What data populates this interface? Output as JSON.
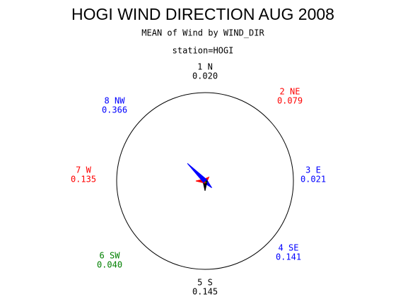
{
  "chart_data": {
    "type": "star",
    "title": "HOGI WIND DIRECTION AUG 2008",
    "subtitle": "MEAN of Wind by WIND_DIR",
    "annotation": "station=HOGI",
    "categories": [
      "1 N",
      "2 NE",
      "3 E",
      "4 SE",
      "5 S",
      "6 SW",
      "7 W",
      "8 NW"
    ],
    "values": [
      0.02,
      0.079,
      0.021,
      0.141,
      0.145,
      0.04,
      0.135,
      0.366
    ],
    "value_labels": [
      "0.020",
      "0.079",
      "0.021",
      "0.141",
      "0.145",
      "0.040",
      "0.135",
      "0.366"
    ],
    "colors": [
      "#000000",
      "#ff0000",
      "#0000ff",
      "#0000ff",
      "#000000",
      "#008000",
      "#ff0000",
      "#0000ff"
    ],
    "rlim": [
      0,
      1.3
    ]
  }
}
